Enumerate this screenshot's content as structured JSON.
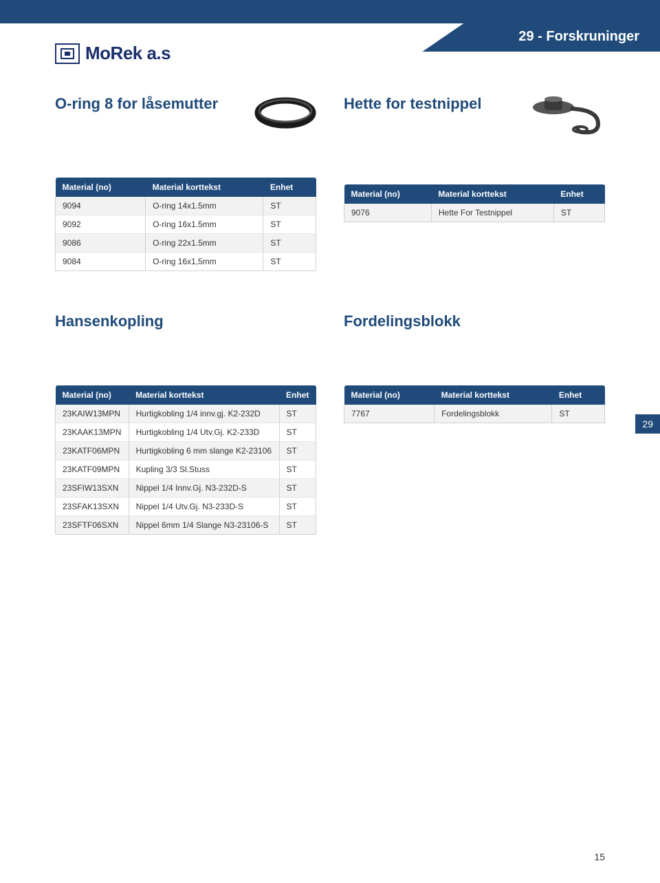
{
  "brand": "MoRek a.s",
  "header_title": "29 - Forskruninger",
  "side_tab": "29",
  "page_number": "15",
  "col_headers": {
    "c1": "Material (no)",
    "c2": "Material korttekst",
    "c3": "Enhet"
  },
  "sec_oring": {
    "title": "O-ring 8 for låsemutter",
    "rows": [
      {
        "c1": "9094",
        "c2": "O-ring 14x1.5mm",
        "c3": "ST"
      },
      {
        "c1": "9092",
        "c2": "O-ring 16x1.5mm",
        "c3": "ST"
      },
      {
        "c1": "9086",
        "c2": "O-ring 22x1.5mm",
        "c3": "ST"
      },
      {
        "c1": "9084",
        "c2": "O-ring 16x1,5mm",
        "c3": "ST"
      }
    ]
  },
  "sec_hette": {
    "title": "Hette for testnippel",
    "rows": [
      {
        "c1": "9076",
        "c2": "Hette For Testnippel",
        "c3": "ST"
      }
    ]
  },
  "sec_hansen": {
    "title": "Hansenkopling",
    "rows": [
      {
        "c1": "23KAIW13MPN",
        "c2": "Hurtigkobling 1/4 innv.gj. K2-232D",
        "c3": "ST"
      },
      {
        "c1": "23KAAK13MPN",
        "c2": "Hurtigkobling 1/4 Utv.Gj. K2-233D",
        "c3": "ST"
      },
      {
        "c1": "23KATF06MPN",
        "c2": "Hurtigkobling 6 mm slange K2-23106",
        "c3": "ST"
      },
      {
        "c1": "23KATF09MPN",
        "c2": "Kupling 3/3 Sl.Stuss",
        "c3": "ST"
      },
      {
        "c1": "23SFIW13SXN",
        "c2": "Nippel 1/4 Innv.Gj. N3-232D-S",
        "c3": "ST"
      },
      {
        "c1": "23SFAK13SXN",
        "c2": "Nippel 1/4 Utv.Gj. N3-233D-S",
        "c3": "ST"
      },
      {
        "c1": "23SFTF06SXN",
        "c2": "Nippel 6mm 1/4 Slange N3-23106-S",
        "c3": "ST"
      }
    ]
  },
  "sec_fordel": {
    "title": "Fordelingsblokk",
    "rows": [
      {
        "c1": "7767",
        "c2": "Fordelingsblokk",
        "c3": "ST"
      }
    ]
  }
}
